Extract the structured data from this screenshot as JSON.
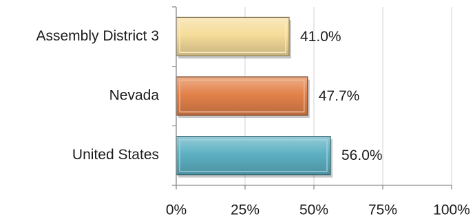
{
  "chart_data": {
    "type": "bar",
    "orientation": "horizontal",
    "categories": [
      "Assembly District 3",
      "Nevada",
      "United States"
    ],
    "values": [
      41.0,
      47.7,
      56.0
    ],
    "value_labels": [
      "41.0%",
      "47.7%",
      "56.0%"
    ],
    "xlim": [
      0,
      100
    ],
    "xticks": [
      0,
      25,
      50,
      75,
      100
    ],
    "xtick_labels": [
      "0%",
      "25%",
      "50%",
      "75%",
      "100%"
    ],
    "grid": "vertical",
    "legend": "none",
    "colors": [
      "#f5dc9a",
      "#e3824a",
      "#5db1c3"
    ]
  }
}
